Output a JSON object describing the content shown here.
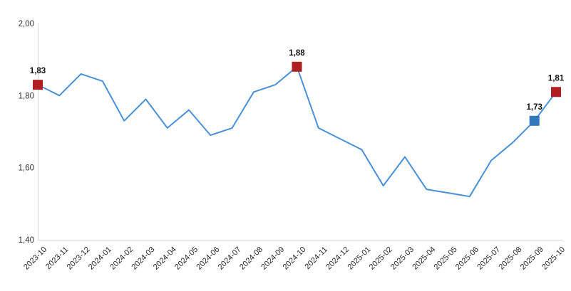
{
  "chart_data": {
    "type": "line",
    "x": [
      "2023-10",
      "2023-11",
      "2023-12",
      "2024-01",
      "2024-02",
      "2024-03",
      "2024-04",
      "2024-05",
      "2024-06",
      "2024-07",
      "2024-08",
      "2024-09",
      "2024-10",
      "2024-11",
      "2024-12",
      "2025-01",
      "2025-02",
      "2025-03",
      "2025-04",
      "2025-05",
      "2025-06",
      "2025-07",
      "2025-08",
      "2025-09",
      "2025-10"
    ],
    "series": [
      {
        "name": "value",
        "values": [
          1.83,
          1.8,
          1.86,
          1.84,
          1.73,
          1.79,
          1.71,
          1.76,
          1.69,
          1.71,
          1.81,
          1.83,
          1.88,
          1.71,
          1.68,
          1.65,
          1.55,
          1.63,
          1.54,
          1.53,
          1.52,
          1.62,
          1.67,
          1.73,
          1.81
        ]
      }
    ],
    "title": "",
    "xlabel": "",
    "ylabel": "",
    "ylim": [
      1.4,
      2.0
    ],
    "ytick_values": [
      1.4,
      1.6,
      1.8,
      2.0
    ],
    "ytick_labels": [
      "1,40",
      "1,60",
      "1,80",
      "2,00"
    ],
    "decimal_separator": ",",
    "grid": "none",
    "legend": "none",
    "axis_line_color": "#d9d9d9",
    "line_color": "#4a90d5",
    "marked_points": [
      {
        "x": "2023-10",
        "value": 1.83,
        "label": "1,83",
        "color": "#b02020"
      },
      {
        "x": "2024-10",
        "value": 1.88,
        "label": "1,88",
        "color": "#b02020"
      },
      {
        "x": "2025-09",
        "value": 1.73,
        "label": "1,73",
        "color": "#2e78bb"
      },
      {
        "x": "2025-10",
        "value": 1.81,
        "label": "1,81",
        "color": "#b02020"
      }
    ]
  }
}
